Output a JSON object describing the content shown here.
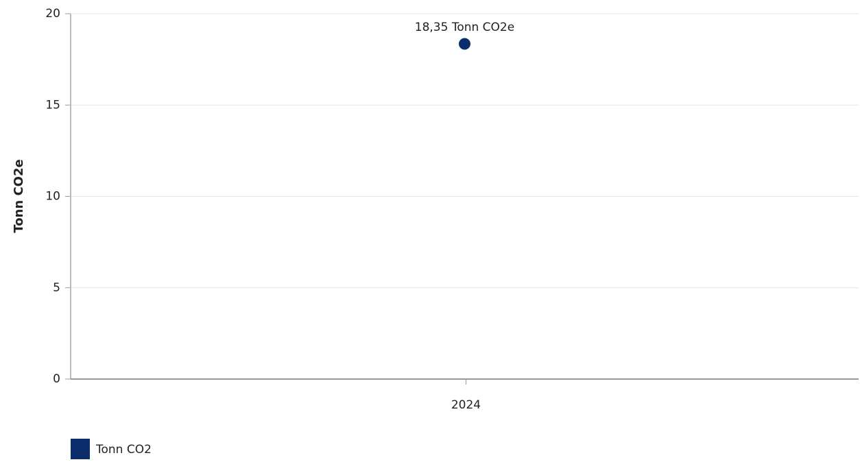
{
  "chart_data": {
    "type": "line",
    "ylabel": "Tonn CO2e",
    "categories": [
      "2024"
    ],
    "series": [
      {
        "name": "Tonn CO2",
        "color": "#0b2d6b",
        "values": [
          18.35
        ],
        "value_labels": [
          "18,35 Tonn CO2e"
        ]
      }
    ],
    "ylim": [
      0,
      20
    ],
    "yticks": [
      0,
      5,
      10,
      15,
      20
    ],
    "grid": true,
    "legend": "bottom-left"
  }
}
